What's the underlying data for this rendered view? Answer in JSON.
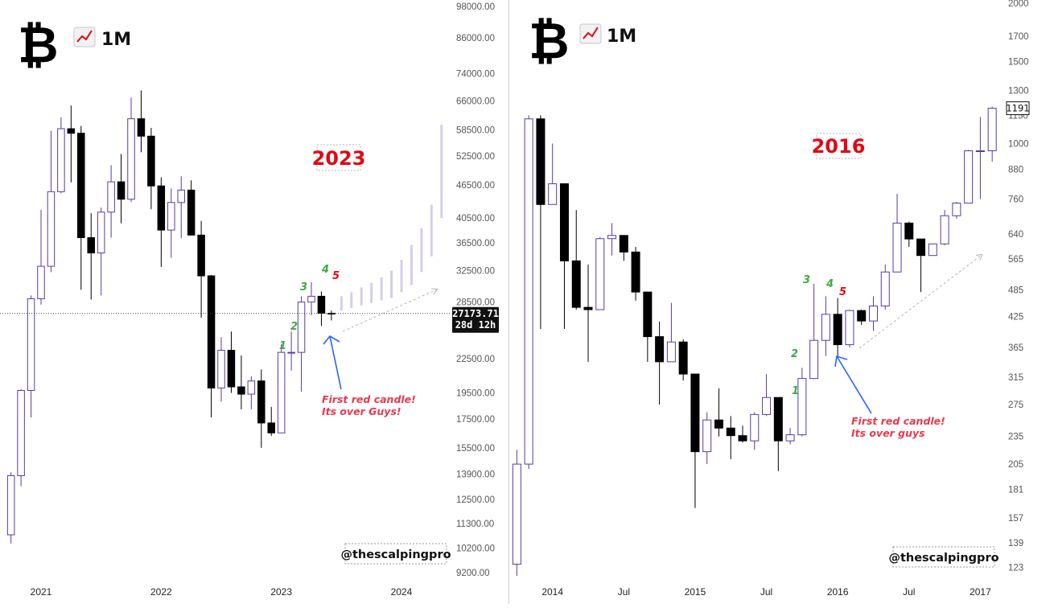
{
  "chart_data": [
    {
      "type": "candlestick",
      "header": {
        "symbol_icon": "bitcoin-logo",
        "timeframe_icon": "chart-increasing-icon",
        "timeframe": "1M"
      },
      "scale": "log",
      "y_ticks": [
        "98000.00",
        "86000.00",
        "74000.00",
        "66000.00",
        "58500.00",
        "52500.00",
        "46500.00",
        "40500.00",
        "36500.00",
        "32500.00",
        "28500.00",
        "22500.00",
        "19500.00",
        "17500.00",
        "15500.00",
        "13900.00",
        "12500.00",
        "11300.00",
        "10200.00",
        "9200.00"
      ],
      "x_ticks": [
        "2021",
        "2022",
        "2023",
        "2024"
      ],
      "ylim": [
        8900,
        100000
      ],
      "price_label": "27173.71",
      "countdown_label": "28d 12h",
      "current_price": 27173.71,
      "year_label": "2023",
      "counts": [
        "1",
        "2",
        "3",
        "4",
        "5"
      ],
      "annotation": [
        "First red candle!",
        "Its over Guys!"
      ],
      "watermark": "@thescalpingpro",
      "colors": {
        "up_fill": "#ffffff",
        "up_border": "#5b3aa0",
        "down": "#000000",
        "wick": "#5b3aa0",
        "projection": "#d6cdea",
        "count": "#3faa3f",
        "count5": "#e30613",
        "arrow": "#2962ff"
      },
      "candles": [
        {
          "date": "2020-10",
          "o": 10780,
          "h": 14000,
          "l": 10400,
          "c": 13800
        },
        {
          "date": "2020-11",
          "o": 13800,
          "h": 19800,
          "l": 13200,
          "c": 19700
        },
        {
          "date": "2020-12",
          "o": 19700,
          "h": 29300,
          "l": 17600,
          "c": 28900
        },
        {
          "date": "2021-01",
          "o": 28900,
          "h": 41900,
          "l": 28200,
          "c": 33100
        },
        {
          "date": "2021-02",
          "o": 33100,
          "h": 58300,
          "l": 32300,
          "c": 45200
        },
        {
          "date": "2021-03",
          "o": 45200,
          "h": 61700,
          "l": 44900,
          "c": 58800
        },
        {
          "date": "2021-04",
          "o": 58800,
          "h": 64800,
          "l": 47000,
          "c": 57700
        },
        {
          "date": "2021-05",
          "o": 57700,
          "h": 59500,
          "l": 30000,
          "c": 37300
        },
        {
          "date": "2021-06",
          "o": 37300,
          "h": 41300,
          "l": 28800,
          "c": 35000
        },
        {
          "date": "2021-07",
          "o": 35000,
          "h": 42300,
          "l": 29300,
          "c": 41500
        },
        {
          "date": "2021-08",
          "o": 41500,
          "h": 50500,
          "l": 37300,
          "c": 47100
        },
        {
          "date": "2021-09",
          "o": 47100,
          "h": 52900,
          "l": 39600,
          "c": 43800
        },
        {
          "date": "2021-10",
          "o": 43800,
          "h": 67000,
          "l": 43300,
          "c": 61300
        },
        {
          "date": "2021-11",
          "o": 61300,
          "h": 69000,
          "l": 53300,
          "c": 57000
        },
        {
          "date": "2021-12",
          "o": 57000,
          "h": 59000,
          "l": 42000,
          "c": 46300
        },
        {
          "date": "2022-01",
          "o": 46300,
          "h": 48000,
          "l": 33000,
          "c": 38500
        },
        {
          "date": "2022-02",
          "o": 38500,
          "h": 45800,
          "l": 34300,
          "c": 43200
        },
        {
          "date": "2022-03",
          "o": 43200,
          "h": 48200,
          "l": 37200,
          "c": 45500
        },
        {
          "date": "2022-04",
          "o": 45500,
          "h": 47400,
          "l": 37700,
          "c": 37700
        },
        {
          "date": "2022-05",
          "o": 37700,
          "h": 40000,
          "l": 26700,
          "c": 31800
        },
        {
          "date": "2022-06",
          "o": 31800,
          "h": 31900,
          "l": 17600,
          "c": 19900
        },
        {
          "date": "2022-07",
          "o": 19900,
          "h": 24600,
          "l": 18800,
          "c": 23300
        },
        {
          "date": "2022-08",
          "o": 23300,
          "h": 25200,
          "l": 19500,
          "c": 20000
        },
        {
          "date": "2022-09",
          "o": 20000,
          "h": 22800,
          "l": 18200,
          "c": 19400
        },
        {
          "date": "2022-10",
          "o": 19400,
          "h": 20900,
          "l": 18200,
          "c": 20500
        },
        {
          "date": "2022-11",
          "o": 20500,
          "h": 21500,
          "l": 15500,
          "c": 17200
        },
        {
          "date": "2022-12",
          "o": 17200,
          "h": 18400,
          "l": 16300,
          "c": 16500
        },
        {
          "date": "2023-01",
          "o": 16500,
          "h": 23900,
          "l": 16500,
          "c": 23100
        },
        {
          "date": "2023-02",
          "o": 23100,
          "h": 25200,
          "l": 21400,
          "c": 23100
        },
        {
          "date": "2023-03",
          "o": 23100,
          "h": 29200,
          "l": 19600,
          "c": 28500
        },
        {
          "date": "2023-04",
          "o": 28500,
          "h": 31000,
          "l": 27000,
          "c": 29200
        },
        {
          "date": "2023-05",
          "o": 29200,
          "h": 29800,
          "l": 25800,
          "c": 27200
        },
        {
          "date": "2023-06",
          "o": 27200,
          "h": 27500,
          "l": 26400,
          "c": 27173.71
        }
      ],
      "projection_bars": [
        {
          "date": "2023-07",
          "l": 27500,
          "h": 29200
        },
        {
          "date": "2023-08",
          "l": 27800,
          "h": 29700
        },
        {
          "date": "2023-09",
          "l": 28100,
          "h": 30300
        },
        {
          "date": "2023-10",
          "l": 28400,
          "h": 30900
        },
        {
          "date": "2023-11",
          "l": 28700,
          "h": 31600
        },
        {
          "date": "2023-12",
          "l": 29000,
          "h": 32500
        },
        {
          "date": "2024-01",
          "l": 29700,
          "h": 34000
        },
        {
          "date": "2024-02",
          "l": 30600,
          "h": 36200
        },
        {
          "date": "2024-03",
          "l": 32300,
          "h": 38800
        },
        {
          "date": "2024-04",
          "l": 34500,
          "h": 42800
        },
        {
          "date": "2024-05",
          "l": 40500,
          "h": 59800
        }
      ]
    },
    {
      "type": "candlestick",
      "header": {
        "symbol_icon": "bitcoin-logo",
        "timeframe_icon": "chart-increasing-icon",
        "timeframe": "1M"
      },
      "scale": "log",
      "y_ticks": [
        "2000",
        "1700",
        "1500",
        "1300",
        "1150",
        "1000",
        "880",
        "760",
        "640",
        "565",
        "485",
        "425",
        "365",
        "315",
        "275",
        "235",
        "205",
        "181",
        "157",
        "139",
        "123"
      ],
      "x_ticks": [
        "2014",
        "Jul",
        "2015",
        "Jul",
        "2016",
        "Jul",
        "2017"
      ],
      "ylim": [
        118,
        2050
      ],
      "price_label": "1191",
      "current_price": 1191,
      "year_label": "2016",
      "counts": [
        "1",
        "2",
        "3",
        "4",
        "5"
      ],
      "annotation": [
        "First red candle!",
        "Its over guys"
      ],
      "watermark": "@thescalpingpro",
      "candles": [
        {
          "date": "2013-10",
          "o": 125,
          "h": 220,
          "l": 118,
          "c": 205
        },
        {
          "date": "2013-11",
          "o": 205,
          "h": 1150,
          "l": 200,
          "c": 1130
        },
        {
          "date": "2013-12",
          "o": 1130,
          "h": 1150,
          "l": 400,
          "c": 740
        },
        {
          "date": "2014-01",
          "o": 740,
          "h": 1000,
          "l": 740,
          "c": 820
        },
        {
          "date": "2014-02",
          "o": 820,
          "h": 820,
          "l": 400,
          "c": 560
        },
        {
          "date": "2014-03",
          "o": 560,
          "h": 720,
          "l": 440,
          "c": 445
        },
        {
          "date": "2014-04",
          "o": 445,
          "h": 550,
          "l": 340,
          "c": 440
        },
        {
          "date": "2014-05",
          "o": 440,
          "h": 630,
          "l": 440,
          "c": 625
        },
        {
          "date": "2014-06",
          "o": 625,
          "h": 675,
          "l": 575,
          "c": 635
        },
        {
          "date": "2014-07",
          "o": 635,
          "h": 635,
          "l": 560,
          "c": 585
        },
        {
          "date": "2014-08",
          "o": 585,
          "h": 600,
          "l": 460,
          "c": 480
        },
        {
          "date": "2014-09",
          "o": 480,
          "h": 480,
          "l": 340,
          "c": 385
        },
        {
          "date": "2014-10",
          "o": 385,
          "h": 415,
          "l": 275,
          "c": 340
        },
        {
          "date": "2014-11",
          "o": 340,
          "h": 455,
          "l": 340,
          "c": 375
        },
        {
          "date": "2014-12",
          "o": 375,
          "h": 380,
          "l": 310,
          "c": 320
        },
        {
          "date": "2015-01",
          "o": 320,
          "h": 320,
          "l": 165,
          "c": 218
        },
        {
          "date": "2015-02",
          "o": 218,
          "h": 265,
          "l": 205,
          "c": 255
        },
        {
          "date": "2015-03",
          "o": 255,
          "h": 298,
          "l": 235,
          "c": 245
        },
        {
          "date": "2015-04",
          "o": 245,
          "h": 260,
          "l": 210,
          "c": 236
        },
        {
          "date": "2015-05",
          "o": 236,
          "h": 248,
          "l": 228,
          "c": 230
        },
        {
          "date": "2015-06",
          "o": 230,
          "h": 265,
          "l": 220,
          "c": 262
        },
        {
          "date": "2015-07",
          "o": 262,
          "h": 320,
          "l": 260,
          "c": 285
        },
        {
          "date": "2015-08",
          "o": 285,
          "h": 285,
          "l": 198,
          "c": 230
        },
        {
          "date": "2015-09",
          "o": 230,
          "h": 245,
          "l": 226,
          "c": 237
        },
        {
          "date": "2015-10",
          "o": 237,
          "h": 330,
          "l": 235,
          "c": 313
        },
        {
          "date": "2015-11",
          "o": 313,
          "h": 500,
          "l": 312,
          "c": 378
        },
        {
          "date": "2015-12",
          "o": 378,
          "h": 470,
          "l": 350,
          "c": 430
        },
        {
          "date": "2016-01",
          "o": 430,
          "h": 466,
          "l": 350,
          "c": 370
        },
        {
          "date": "2016-02",
          "o": 370,
          "h": 440,
          "l": 365,
          "c": 438
        },
        {
          "date": "2016-03",
          "o": 438,
          "h": 440,
          "l": 408,
          "c": 416
        },
        {
          "date": "2016-04",
          "o": 416,
          "h": 470,
          "l": 396,
          "c": 448
        },
        {
          "date": "2016-05",
          "o": 448,
          "h": 550,
          "l": 440,
          "c": 530
        },
        {
          "date": "2016-06",
          "o": 530,
          "h": 780,
          "l": 530,
          "c": 675
        },
        {
          "date": "2016-07",
          "o": 675,
          "h": 680,
          "l": 600,
          "c": 624
        },
        {
          "date": "2016-08",
          "o": 624,
          "h": 624,
          "l": 480,
          "c": 575
        },
        {
          "date": "2016-09",
          "o": 575,
          "h": 610,
          "l": 575,
          "c": 609
        },
        {
          "date": "2016-10",
          "o": 609,
          "h": 720,
          "l": 605,
          "c": 700
        },
        {
          "date": "2016-11",
          "o": 700,
          "h": 750,
          "l": 690,
          "c": 745
        },
        {
          "date": "2016-12",
          "o": 745,
          "h": 970,
          "l": 745,
          "c": 965
        },
        {
          "date": "2017-01",
          "o": 965,
          "h": 1140,
          "l": 760,
          "c": 965
        },
        {
          "date": "2017-02",
          "o": 965,
          "h": 1200,
          "l": 915,
          "c": 1191
        }
      ]
    }
  ]
}
